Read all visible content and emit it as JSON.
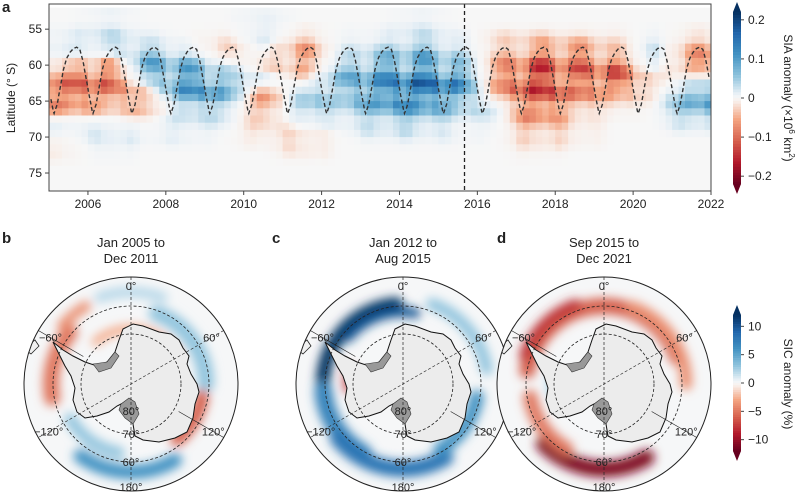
{
  "chart_data": [
    {
      "type": "heatmap",
      "panel_label": "a",
      "ylabel": "Latitude (° S)",
      "xlim": [
        2005,
        2022
      ],
      "ylim": [
        51.5,
        77.5
      ],
      "x_ticks": [
        "2006",
        "2008",
        "2010",
        "2012",
        "2014",
        "2016",
        "2018",
        "2020",
        "2022"
      ],
      "y_ticks": [
        "55",
        "60",
        "65",
        "70",
        "75"
      ],
      "colorbar": {
        "label_prefix": "SIA anomaly (×10",
        "label_exp": "6",
        "label_suffix": " km",
        "label_exp2": "2",
        "label_close": ")",
        "range": [
          -0.22,
          0.22
        ],
        "ticks": [
          "0.2",
          "0.1",
          "0",
          "−0.1",
          "−0.2"
        ],
        "tick_values": [
          0.2,
          0.1,
          0,
          -0.1,
          -0.2
        ],
        "colormap": "RdBu"
      },
      "vertical_marker_year": 2015.67,
      "years": [
        2005,
        2006,
        2007,
        2008,
        2009,
        2010,
        2011,
        2012,
        2013,
        2014,
        2015,
        2016,
        2017,
        2018,
        2019,
        2020,
        2021
      ],
      "latitudes": [
        54,
        56,
        58,
        60,
        62,
        64,
        66,
        68,
        70,
        72,
        74,
        76
      ],
      "values": [
        [
          0,
          0.02,
          0.03,
          -0.05,
          -0.1,
          -0.12,
          -0.08,
          0.02,
          0,
          -0.02,
          0,
          0
        ],
        [
          0.02,
          0.06,
          0.04,
          -0.1,
          -0.12,
          -0.1,
          -0.05,
          0.02,
          0.03,
          0.02,
          0,
          0
        ],
        [
          0,
          0.02,
          0.08,
          0.1,
          0.05,
          -0.05,
          -0.06,
          0,
          0.01,
          0,
          0,
          0
        ],
        [
          0,
          0,
          0.03,
          0.1,
          0.14,
          0.12,
          0.05,
          0.03,
          0.02,
          0,
          0,
          0
        ],
        [
          0,
          -0.02,
          -0.05,
          0.02,
          0.08,
          0.1,
          0.05,
          0.02,
          0,
          0,
          0,
          0
        ],
        [
          0.02,
          0.04,
          0,
          -0.03,
          0.03,
          -0.08,
          -0.08,
          -0.04,
          -0.03,
          0,
          0,
          0
        ],
        [
          0,
          -0.05,
          -0.1,
          -0.08,
          -0.02,
          0.05,
          0.06,
          0.02,
          -0.05,
          -0.03,
          0,
          0
        ],
        [
          0,
          0.01,
          0.02,
          0.05,
          0.08,
          0.06,
          0.04,
          0.02,
          0,
          0,
          0,
          0
        ],
        [
          0,
          0.02,
          0.06,
          0.1,
          0.12,
          0.14,
          0.1,
          0.05,
          0.02,
          0,
          0,
          0
        ],
        [
          0.02,
          0.06,
          0.1,
          0.12,
          0.16,
          0.18,
          0.12,
          0.06,
          0.02,
          0,
          0,
          0
        ],
        [
          0,
          0.02,
          0.05,
          0.08,
          0.14,
          0.12,
          0.06,
          0.02,
          0.01,
          0,
          0,
          0
        ],
        [
          0,
          -0.03,
          -0.05,
          -0.06,
          -0.08,
          -0.05,
          0.02,
          0.01,
          0,
          0,
          0,
          0
        ],
        [
          0,
          -0.05,
          -0.1,
          -0.15,
          -0.18,
          -0.15,
          -0.12,
          -0.1,
          -0.05,
          -0.02,
          0,
          0
        ],
        [
          0,
          -0.04,
          -0.12,
          -0.12,
          -0.1,
          -0.1,
          -0.05,
          -0.02,
          -0.03,
          0,
          0,
          0
        ],
        [
          0,
          -0.03,
          -0.06,
          -0.12,
          -0.15,
          -0.06,
          -0.02,
          0,
          0,
          0,
          0,
          0
        ],
        [
          0,
          0.02,
          0.04,
          0.03,
          -0.03,
          -0.02,
          0,
          0,
          0,
          0,
          0,
          0
        ],
        [
          0,
          -0.04,
          -0.08,
          -0.1,
          0.02,
          0.08,
          0.1,
          0.04,
          0,
          0,
          0,
          0
        ]
      ],
      "climatological_ice_edge_monthly_lat": {
        "months": [
          "Jan",
          "Feb",
          "Mar",
          "Apr",
          "May",
          "Jun",
          "Jul",
          "Aug",
          "Sep",
          "Oct",
          "Nov",
          "Dec"
        ],
        "lat": [
          64.5,
          66.8,
          65.5,
          63,
          60.5,
          59,
          58.2,
          57.7,
          57.5,
          57.8,
          59.5,
          62
        ]
      }
    },
    {
      "type": "map",
      "colorbar": {
        "label": "SIC anomaly (%)",
        "range": [
          -12,
          12
        ],
        "ticks": [
          "10",
          "5",
          "0",
          "−5",
          "−10"
        ],
        "tick_values": [
          10,
          5,
          0,
          -5,
          -10
        ],
        "colormap": "RdBu"
      },
      "panels": [
        {
          "label": "b",
          "title_line1": "Jan 2005 to",
          "title_line2": "Dec 2011"
        },
        {
          "label": "c",
          "title_line1": "Jan 2012 to",
          "title_line2": "Aug 2015"
        },
        {
          "label": "d",
          "title_line1": "Sep 2015 to",
          "title_line2": "Dec 2021"
        }
      ],
      "graticule_labels": {
        "lon_0": "0°",
        "lon_60": "60°",
        "lon_m60": "−60°",
        "lon_120": "120°",
        "lon_m120": "−120°",
        "lon_180": "180°",
        "lat_80": "80°",
        "lat_70": "70°",
        "lat_60": "60°"
      }
    }
  ]
}
